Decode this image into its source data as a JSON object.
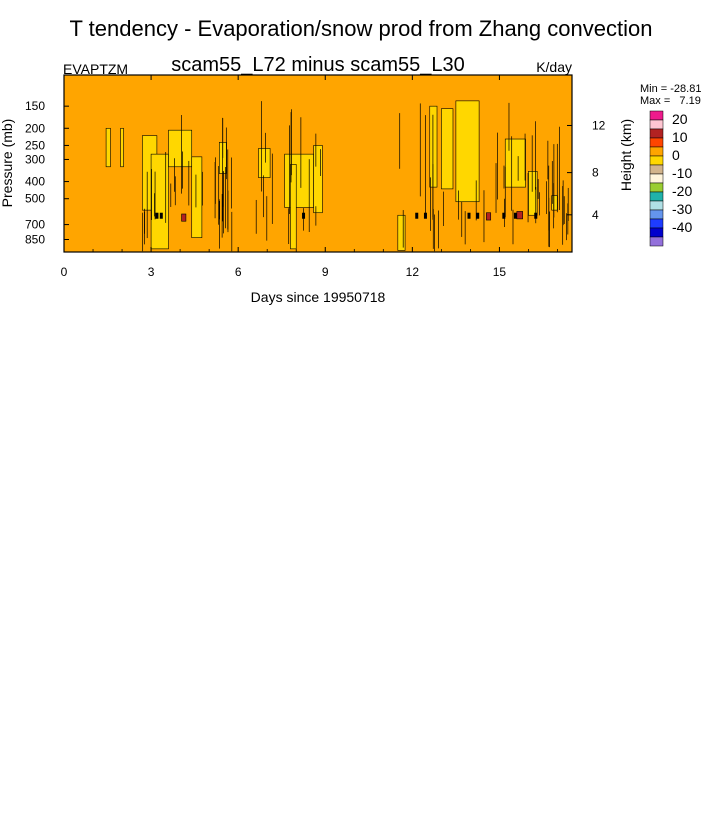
{
  "chart_data": {
    "type": "contour",
    "title": "T tendency - Evaporation/snow prod from Zhang convection",
    "subtitle": "scam55_L72 minus scam55_L30",
    "left_label": "EVAPTZM",
    "right_label": "K/day",
    "xlabel": "Days since 19950718",
    "ylabel": "Pressure (mb)",
    "ylabel_right": "Height (km)",
    "x_ticks": [
      "0",
      "3",
      "6",
      "9",
      "12",
      "15"
    ],
    "x_tick_values": [
      0,
      3,
      6,
      9,
      12,
      15
    ],
    "xlim": [
      0,
      17.5
    ],
    "y_ticks": [
      "150",
      "200",
      "250",
      "300",
      "400",
      "500",
      "700",
      "850"
    ],
    "y_tick_values": [
      150,
      200,
      250,
      300,
      400,
      500,
      700,
      850
    ],
    "ylim": [
      100,
      1000
    ],
    "y_scale": "log",
    "height_ticks": [
      "12",
      "8",
      "4"
    ],
    "height_tick_values": [
      12,
      8,
      4
    ],
    "min_label": "Min = -28.81",
    "max_label": "Max =   7.19",
    "colorbar": {
      "levels": [
        "20",
        "10",
        "0",
        "-10",
        "-20",
        "-30",
        "-40"
      ],
      "colors": [
        "#ee1a8c",
        "#ffc6d2",
        "#b22222",
        "#ff4500",
        "#ffa500",
        "#ffd700",
        "#d2b48c",
        "#fff5dc",
        "#9acd32",
        "#20b2aa",
        "#b0e0e6",
        "#6495ed",
        "#1e3cff",
        "#0000cd",
        "#9370db"
      ]
    },
    "background_level_color": "#ffa500",
    "regions": [
      {
        "color": "#ffd700",
        "x0": 1.45,
        "x1": 1.6,
        "p0": 200,
        "p1": 330
      },
      {
        "color": "#ffd700",
        "x0": 1.95,
        "x1": 2.05,
        "p0": 200,
        "p1": 330
      },
      {
        "color": "#ffd700",
        "x0": 2.7,
        "x1": 3.2,
        "p0": 220,
        "p1": 580
      },
      {
        "color": "#ffd700",
        "x0": 3.0,
        "x1": 3.6,
        "p0": 280,
        "p1": 960
      },
      {
        "color": "#ffd700",
        "x0": 3.6,
        "x1": 4.4,
        "p0": 205,
        "p1": 330
      },
      {
        "color": "#ffd700",
        "x0": 4.4,
        "x1": 4.75,
        "p0": 290,
        "p1": 830
      },
      {
        "color": "#ffd700",
        "x0": 5.35,
        "x1": 5.6,
        "p0": 240,
        "p1": 360
      },
      {
        "color": "#ffd700",
        "x0": 6.7,
        "x1": 7.1,
        "p0": 260,
        "p1": 380
      },
      {
        "color": "#ffd700",
        "x0": 7.6,
        "x1": 8.6,
        "p0": 280,
        "p1": 560
      },
      {
        "color": "#ffd700",
        "x0": 7.8,
        "x1": 8.0,
        "p0": 320,
        "p1": 960
      },
      {
        "color": "#ffd700",
        "x0": 8.6,
        "x1": 8.9,
        "p0": 250,
        "p1": 600
      },
      {
        "color": "#ffd700",
        "x0": 11.5,
        "x1": 11.75,
        "p0": 620,
        "p1": 980
      },
      {
        "color": "#ffd700",
        "x0": 12.6,
        "x1": 12.85,
        "p0": 150,
        "p1": 430
      },
      {
        "color": "#ffd700",
        "x0": 13.0,
        "x1": 13.4,
        "p0": 155,
        "p1": 440
      },
      {
        "color": "#ffd700",
        "x0": 13.5,
        "x1": 14.3,
        "p0": 140,
        "p1": 520
      },
      {
        "color": "#ffd700",
        "x0": 15.2,
        "x1": 15.9,
        "p0": 230,
        "p1": 430
      },
      {
        "color": "#ffd700",
        "x0": 16.0,
        "x1": 16.3,
        "p0": 350,
        "p1": 620
      },
      {
        "color": "#ffd700",
        "x0": 16.8,
        "x1": 17.0,
        "p0": 480,
        "p1": 580
      },
      {
        "color": "#b22222",
        "x0": 4.05,
        "x1": 4.2,
        "p0": 610,
        "p1": 670
      },
      {
        "color": "#b22222",
        "x0": 14.55,
        "x1": 14.7,
        "p0": 600,
        "p1": 660
      },
      {
        "color": "#b22222",
        "x0": 15.6,
        "x1": 15.8,
        "p0": 590,
        "p1": 650
      }
    ]
  }
}
